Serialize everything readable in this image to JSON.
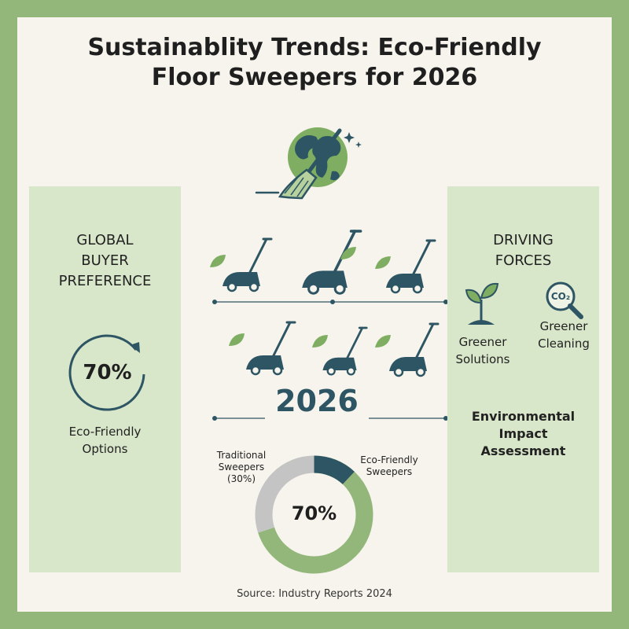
{
  "header": {
    "title_line1": "Sustainablity Trends: Eco-Friendly",
    "title_line2": "Floor Sweepers for 2026"
  },
  "left_panel": {
    "title_line1": "GLOBAL",
    "title_line2": "BUYER",
    "title_line3": "PREFERENCE",
    "stat_value": "70%",
    "stat_label_line1": "Eco-Friendly",
    "stat_label_line2": "Options"
  },
  "right_panel": {
    "title_line1": "DRIVING",
    "title_line2": "FORCES",
    "co2_label": "CO₂",
    "force1_line1": "Greener",
    "force1_line2": "Solutions",
    "force2_line1": "Greener",
    "force2_line2": "Cleaning",
    "assessment_line1": "Environmental",
    "assessment_line2": "Impact",
    "assessment_line3": "Assessment"
  },
  "center": {
    "year": "2026"
  },
  "chart_data": {
    "type": "pie",
    "style": "donut",
    "slices": [
      {
        "name": "Eco-Friendly Sweepers",
        "value": 70,
        "color": "#93b77a"
      },
      {
        "name": "Traditional Sweepers",
        "value": 30,
        "color": "#c4c4c4"
      }
    ],
    "labels": {
      "eco_line1": "Eco-Friendly",
      "eco_line2": "Sweepers",
      "trad_line1": "Traditional",
      "trad_line2": "Sweepers",
      "trad_line3": "(30%)"
    },
    "center_value": "70%"
  },
  "footer": {
    "source": "Source: Industry Reports 2024"
  },
  "colors": {
    "frame": "#93b77a",
    "panel": "#d8e6c9",
    "navy": "#2d5563",
    "leaf": "#7fae62",
    "grey": "#c4c4c4"
  }
}
